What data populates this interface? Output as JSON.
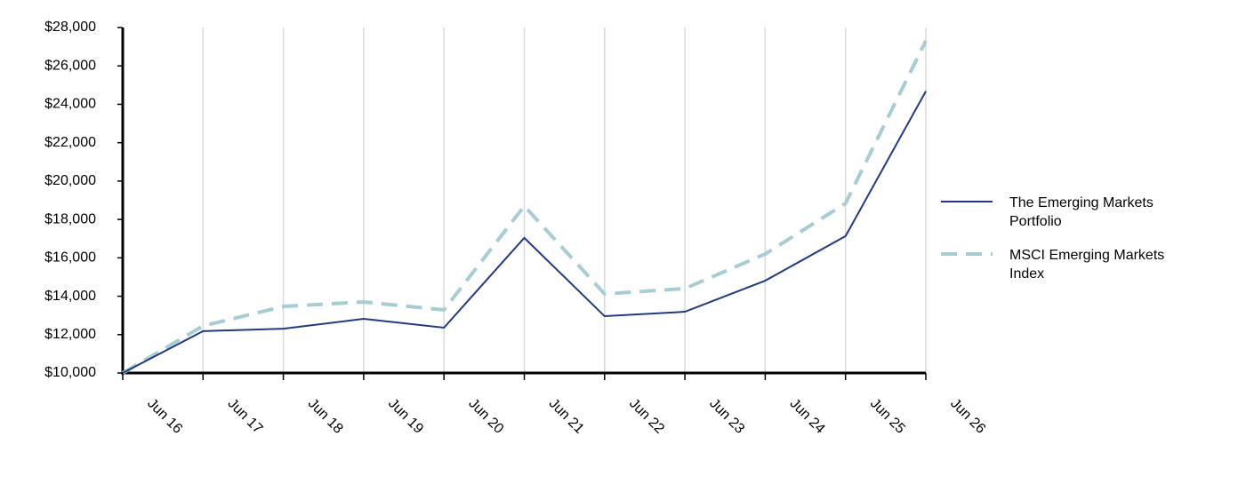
{
  "chart_data": {
    "type": "line",
    "categories": [
      "Jun 16",
      "Jun 17",
      "Jun 18",
      "Jun 19",
      "Jun 20",
      "Jun 21",
      "Jun 22",
      "Jun 23",
      "Jun 24",
      "Jun 25",
      "Jun 26"
    ],
    "series": [
      {
        "name": "The Emerging Markets Portfolio",
        "color": "#233a80",
        "dash": "solid",
        "values": [
          10000,
          12180,
          12310,
          12820,
          12360,
          17040,
          12960,
          13190,
          14810,
          17130,
          24680
        ]
      },
      {
        "name": "MSCI Emerging Markets Index",
        "color": "#a6cdd4",
        "dash": "dashed",
        "values": [
          10000,
          12450,
          13470,
          13700,
          13290,
          18700,
          14120,
          14400,
          16200,
          18840,
          27310
        ]
      }
    ],
    "ylim": [
      10000,
      28000
    ],
    "yticks": [
      {
        "value": 10000,
        "label": "$10,000"
      },
      {
        "value": 12000,
        "label": "$12,000"
      },
      {
        "value": 14000,
        "label": "$14,000"
      },
      {
        "value": 16000,
        "label": "$16,000"
      },
      {
        "value": 18000,
        "label": "$18,000"
      },
      {
        "value": 20000,
        "label": "$20,000"
      },
      {
        "value": 22000,
        "label": "$22,000"
      },
      {
        "value": 24000,
        "label": "$24,000"
      },
      {
        "value": 26000,
        "label": "$26,000"
      },
      {
        "value": 28000,
        "label": "$28,000"
      }
    ],
    "grid": "x",
    "legend": "right"
  }
}
